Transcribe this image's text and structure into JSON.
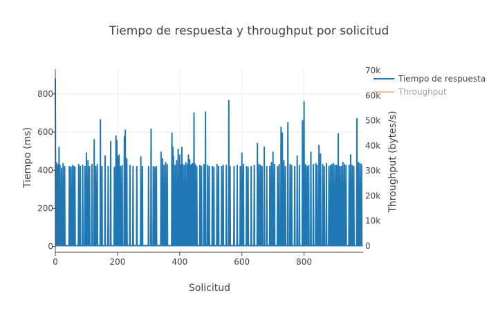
{
  "chart_data": {
    "type": "line",
    "title": "Tiempo de respuesta y throughput por solicitud",
    "xlabel": "Solicitud",
    "ylabel": "Tiempo (ms)",
    "y2label": "Throughput (bytes/s)",
    "xlim": [
      0,
      990
    ],
    "ylim": [
      -30,
      930
    ],
    "y2lim": [
      0,
      70000
    ],
    "x_ticks": [
      0,
      200,
      400,
      600,
      800
    ],
    "y_ticks": [
      0,
      200,
      400,
      600,
      800
    ],
    "y2_ticks": [
      0,
      10000,
      20000,
      30000,
      40000,
      50000,
      60000,
      70000
    ],
    "y2_tick_labels": [
      "0",
      "10k",
      "20k",
      "30k",
      "40k",
      "50k",
      "60k",
      "70k"
    ],
    "x_tick_labels": [
      "0",
      "200",
      "400",
      "600",
      "800"
    ],
    "y_tick_labels": [
      "0",
      "200",
      "400",
      "600",
      "800"
    ],
    "legend_position": "top-right",
    "series": [
      {
        "name": "Tiempo de respuesta",
        "color": "#1f77b4",
        "axis": "y",
        "visible": true,
        "baseline": 5,
        "typical_spike": 420,
        "n_points": 990,
        "spikes": [
          [
            0,
            880
          ],
          [
            3,
            440
          ],
          [
            5,
            420
          ],
          [
            8,
            430
          ],
          [
            12,
            520
          ],
          [
            15,
            425
          ],
          [
            20,
            410
          ],
          [
            25,
            435
          ],
          [
            30,
            420
          ],
          [
            45,
            420
          ],
          [
            50,
            415
          ],
          [
            55,
            425
          ],
          [
            60,
            420
          ],
          [
            63,
            415
          ],
          [
            75,
            430
          ],
          [
            80,
            420
          ],
          [
            88,
            425
          ],
          [
            95,
            420
          ],
          [
            100,
            490
          ],
          [
            105,
            450
          ],
          [
            110,
            420
          ],
          [
            118,
            430
          ],
          [
            125,
            560
          ],
          [
            130,
            420
          ],
          [
            135,
            430
          ],
          [
            145,
            665
          ],
          [
            150,
            420
          ],
          [
            160,
            475
          ],
          [
            170,
            420
          ],
          [
            178,
            550
          ],
          [
            190,
            415
          ],
          [
            195,
            580
          ],
          [
            198,
            555
          ],
          [
            202,
            470
          ],
          [
            205,
            480
          ],
          [
            210,
            420
          ],
          [
            215,
            425
          ],
          [
            222,
            575
          ],
          [
            225,
            610
          ],
          [
            230,
            460
          ],
          [
            240,
            425
          ],
          [
            250,
            420
          ],
          [
            262,
            420
          ],
          [
            275,
            470
          ],
          [
            280,
            420
          ],
          [
            300,
            420
          ],
          [
            308,
            615
          ],
          [
            315,
            420
          ],
          [
            320,
            415
          ],
          [
            325,
            420
          ],
          [
            340,
            495
          ],
          [
            345,
            460
          ],
          [
            350,
            425
          ],
          [
            355,
            440
          ],
          [
            360,
            430
          ],
          [
            375,
            595
          ],
          [
            378,
            520
          ],
          [
            380,
            470
          ],
          [
            385,
            425
          ],
          [
            390,
            450
          ],
          [
            395,
            510
          ],
          [
            400,
            480
          ],
          [
            403,
            425
          ],
          [
            407,
            520
          ],
          [
            410,
            430
          ],
          [
            415,
            425
          ],
          [
            420,
            440
          ],
          [
            425,
            430
          ],
          [
            428,
            480
          ],
          [
            430,
            420
          ],
          [
            432,
            455
          ],
          [
            435,
            425
          ],
          [
            438,
            430
          ],
          [
            442,
            435
          ],
          [
            446,
            700
          ],
          [
            450,
            430
          ],
          [
            455,
            420
          ],
          [
            465,
            425
          ],
          [
            470,
            420
          ],
          [
            478,
            430
          ],
          [
            483,
            705
          ],
          [
            490,
            425
          ],
          [
            495,
            420
          ],
          [
            505,
            420
          ],
          [
            510,
            415
          ],
          [
            520,
            430
          ],
          [
            525,
            420
          ],
          [
            535,
            420
          ],
          [
            540,
            425
          ],
          [
            550,
            425
          ],
          [
            558,
            765
          ],
          [
            562,
            420
          ],
          [
            575,
            420
          ],
          [
            585,
            425
          ],
          [
            595,
            420
          ],
          [
            600,
            490
          ],
          [
            605,
            430
          ],
          [
            615,
            420
          ],
          [
            620,
            415
          ],
          [
            630,
            420
          ],
          [
            640,
            425
          ],
          [
            650,
            540
          ],
          [
            655,
            430
          ],
          [
            660,
            425
          ],
          [
            665,
            420
          ],
          [
            672,
            520
          ],
          [
            680,
            420
          ],
          [
            690,
            420
          ],
          [
            695,
            440
          ],
          [
            700,
            495
          ],
          [
            705,
            430
          ],
          [
            715,
            420
          ],
          [
            720,
            430
          ],
          [
            726,
            625
          ],
          [
            730,
            595
          ],
          [
            735,
            450
          ],
          [
            740,
            420
          ],
          [
            748,
            650
          ],
          [
            755,
            430
          ],
          [
            760,
            425
          ],
          [
            770,
            420
          ],
          [
            778,
            475
          ],
          [
            785,
            425
          ],
          [
            795,
            660
          ],
          [
            800,
            760
          ],
          [
            805,
            430
          ],
          [
            810,
            420
          ],
          [
            815,
            425
          ],
          [
            822,
            495
          ],
          [
            830,
            430
          ],
          [
            838,
            435
          ],
          [
            842,
            425
          ],
          [
            848,
            530
          ],
          [
            853,
            485
          ],
          [
            860,
            430
          ],
          [
            865,
            420
          ],
          [
            872,
            435
          ],
          [
            880,
            420
          ],
          [
            885,
            425
          ],
          [
            890,
            430
          ],
          [
            895,
            435
          ],
          [
            900,
            425
          ],
          [
            905,
            425
          ],
          [
            910,
            590
          ],
          [
            915,
            420
          ],
          [
            920,
            420
          ],
          [
            925,
            440
          ],
          [
            930,
            430
          ],
          [
            935,
            425
          ],
          [
            945,
            425
          ],
          [
            950,
            480
          ],
          [
            955,
            425
          ],
          [
            960,
            420
          ],
          [
            970,
            670
          ],
          [
            975,
            440
          ],
          [
            980,
            435
          ],
          [
            985,
            430
          ]
        ]
      },
      {
        "name": "Throughput",
        "color": "#ff7f0e",
        "axis": "y2",
        "visible": false,
        "values": []
      }
    ]
  }
}
